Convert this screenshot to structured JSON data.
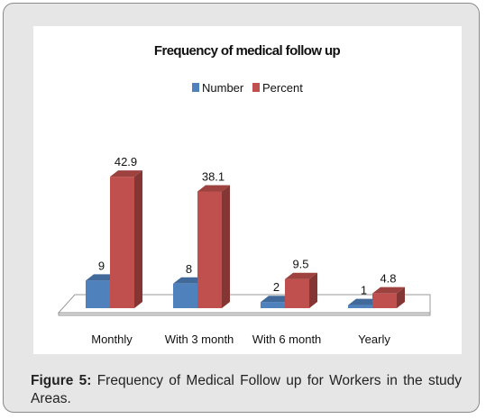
{
  "chart_data": {
    "type": "bar",
    "title": "Frequency of medical follow up",
    "categories": [
      "Monthly",
      "With 3 month",
      "With 6 month",
      "Yearly"
    ],
    "series": [
      {
        "name": "Number",
        "values": [
          9,
          8,
          2,
          1
        ],
        "labels": [
          "9",
          "8",
          "2",
          "1"
        ],
        "color": "#4f81bd"
      },
      {
        "name": "Percent",
        "values": [
          42.9,
          38.1,
          9.5,
          4.8
        ],
        "labels": [
          "42.9",
          "38.1",
          "9.5",
          "4.8"
        ],
        "color": "#c0504d"
      }
    ],
    "xlabel": "",
    "ylabel": "",
    "ylim": [
      0,
      45
    ],
    "grid": false,
    "legend_position": "top-center",
    "style": "3d-column"
  },
  "caption": {
    "label": "Figure 5:",
    "text": "Frequency of Medical Follow up for Workers in the study Areas."
  }
}
